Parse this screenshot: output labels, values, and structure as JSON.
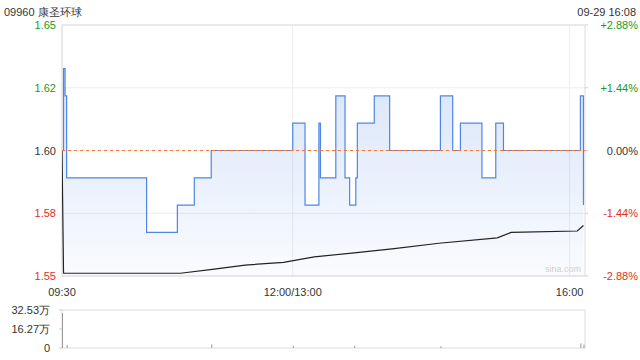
{
  "header": {
    "title": "09960 康圣环球",
    "time": "09-29 16:08"
  },
  "chart_data": [
    {
      "type": "line",
      "xlim": [
        0,
        340
      ],
      "xticks": [
        {
          "value": 0,
          "label": "09:30"
        },
        {
          "value": 150,
          "label": "12:00/13:00"
        },
        {
          "value": 330,
          "label": "16:00"
        }
      ],
      "ylim": [
        1.554,
        1.646
      ],
      "yticks": [
        {
          "value": 1.554,
          "label": "1.55"
        },
        {
          "value": 1.577,
          "label": "1.58"
        },
        {
          "value": 1.6,
          "label": "1.60"
        },
        {
          "value": 1.623,
          "label": "1.62"
        },
        {
          "value": 1.646,
          "label": "1.65"
        }
      ],
      "y2lim": [
        -2.88,
        2.88
      ],
      "y2ticks": [
        {
          "value": -2.88,
          "label": "-2.88%"
        },
        {
          "value": -1.44,
          "label": "-1.44%"
        },
        {
          "value": 0,
          "label": "0.00%"
        },
        {
          "value": 1.44,
          "label": "+1.44%"
        },
        {
          "value": 2.88,
          "label": "+2.88%"
        }
      ],
      "reference_line": 1.6,
      "grid": true,
      "annotations": [
        "sina.com"
      ],
      "series": [
        {
          "type": "area",
          "line_style": "step",
          "color": "#4f86e6",
          "x": [
            0,
            1,
            2,
            3,
            55,
            75,
            86,
            97,
            150,
            158,
            167,
            168,
            178,
            184,
            187,
            191,
            192,
            203,
            213,
            246,
            254,
            259,
            273,
            282,
            287,
            337,
            339
          ],
          "values": [
            1.6,
            1.63,
            1.62,
            1.59,
            1.57,
            1.58,
            1.59,
            1.6,
            1.61,
            1.58,
            1.61,
            1.59,
            1.62,
            1.59,
            1.58,
            1.59,
            1.61,
            1.62,
            1.6,
            1.62,
            1.6,
            1.61,
            1.59,
            1.61,
            1.6,
            1.62,
            1.58
          ]
        },
        {
          "type": "line",
          "color": "#222222",
          "x": [
            0,
            1,
            77,
            99,
            119,
            144,
            164,
            190,
            216,
            245,
            283,
            292,
            335,
            339
          ],
          "values": [
            1.6,
            1.555,
            1.555,
            1.5565,
            1.558,
            1.559,
            1.561,
            1.5625,
            1.564,
            1.566,
            1.568,
            1.57,
            1.5705,
            1.5725
          ]
        }
      ]
    },
    {
      "type": "bar",
      "color": "#999999",
      "xlim": [
        0,
        340
      ],
      "ylim": [
        0,
        32.53
      ],
      "yticks": [
        0,
        {
          "value": 16.27,
          "label": "16.27万"
        },
        {
          "value": 32.53,
          "label": "32.53万"
        }
      ],
      "x": [
        0,
        3,
        97,
        150,
        190,
        246,
        337,
        339
      ],
      "values": [
        30,
        2.5,
        3,
        2,
        2,
        1.5,
        4,
        3
      ]
    }
  ]
}
